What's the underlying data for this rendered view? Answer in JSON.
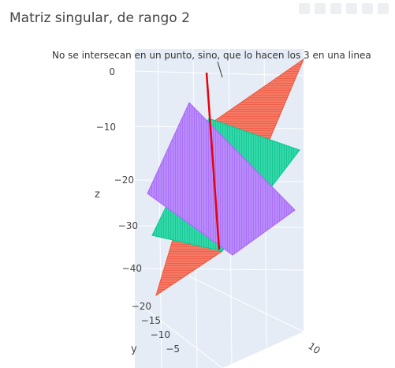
{
  "chart_data": {
    "type": "surface",
    "title": "Matriz singular, de rango 2",
    "annotation": "No se intersecan en un punto, sino,  que lo hacen los 3 en una linea",
    "axes": {
      "z": {
        "label": "z",
        "ticks": [
          "0",
          "−10",
          "−20",
          "−30",
          "−40"
        ]
      },
      "y": {
        "label": "y",
        "ticks": [
          "−20",
          "−15",
          "−10",
          "−5"
        ]
      },
      "x": {
        "label": "",
        "ticks": [
          "10"
        ]
      }
    },
    "series": [
      {
        "color": "#ef553b"
      },
      {
        "color": "#00cc96"
      },
      {
        "color": "#ab63fa"
      },
      {
        "color": "#e8000b"
      }
    ]
  }
}
